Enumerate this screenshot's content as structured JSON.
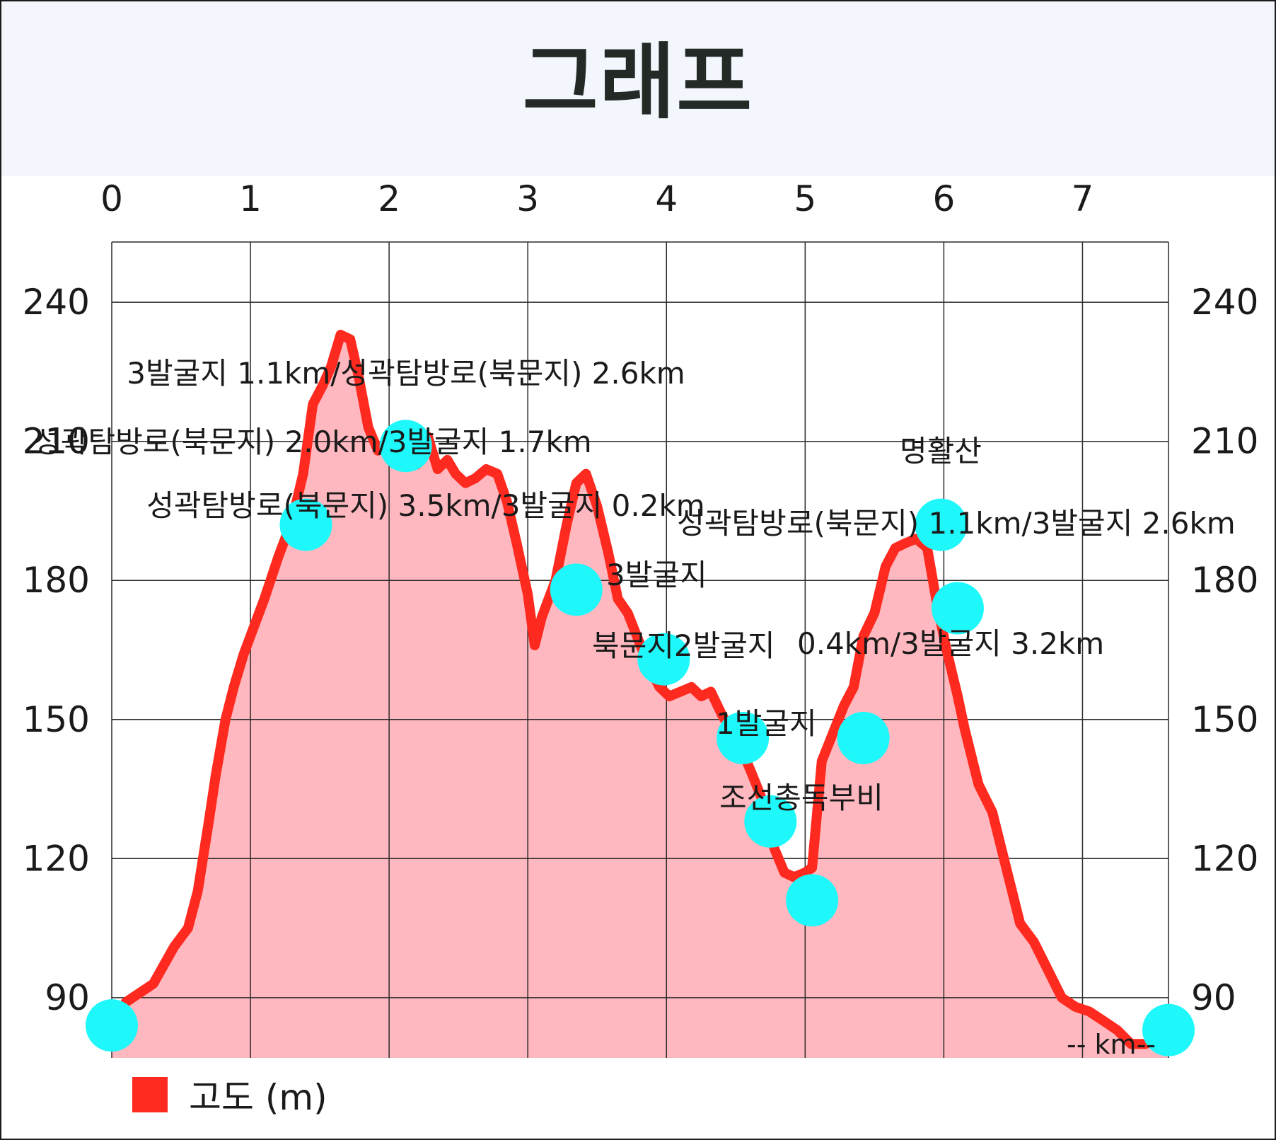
{
  "page": {
    "title": "그래프"
  },
  "colors": {
    "line": "#ff2a1f",
    "fill": "#ffb8bf",
    "marker": "#1ef8fa",
    "grid": "#2a2a2a",
    "text": "#1a1a1a"
  },
  "chart_data": {
    "type": "area",
    "title": "",
    "xlabel": "-- km--",
    "ylabel": "",
    "xlim": [
      0,
      7.62
    ],
    "ylim": [
      77,
      253
    ],
    "x_ticks": [
      0,
      1,
      2,
      3,
      4,
      5,
      6,
      7
    ],
    "y_ticks": [
      90,
      120,
      150,
      180,
      210,
      240
    ],
    "x_tick_labels": [
      "0",
      "1",
      "2",
      "3",
      "4",
      "5",
      "6",
      "7"
    ],
    "y_tick_labels": [
      "90",
      "120",
      "150",
      "180",
      "210",
      "240"
    ],
    "grid": true,
    "legend": {
      "position": "bottom-left",
      "entries": [
        "고도 (m)"
      ]
    },
    "series": [
      {
        "name": "고도 (m)",
        "x": [
          0,
          0.1,
          0.3,
          0.45,
          0.55,
          0.62,
          0.7,
          0.75,
          0.82,
          0.88,
          0.95,
          1.05,
          1.1,
          1.2,
          1.3,
          1.38,
          1.45,
          1.52,
          1.58,
          1.65,
          1.72,
          1.78,
          1.85,
          1.92,
          1.98,
          2.05,
          2.12,
          2.2,
          2.28,
          2.35,
          2.42,
          2.48,
          2.55,
          2.62,
          2.7,
          2.78,
          2.85,
          2.92,
          3.0,
          3.05,
          3.1,
          3.2,
          3.28,
          3.35,
          3.42,
          3.5,
          3.58,
          3.65,
          3.72,
          3.8,
          3.88,
          3.95,
          4.02,
          4.1,
          4.18,
          4.25,
          4.32,
          4.4,
          4.48,
          4.55,
          4.62,
          4.7,
          4.78,
          4.85,
          4.92,
          5.0,
          5.05,
          5.12,
          5.2,
          5.28,
          5.35,
          5.42,
          5.5,
          5.58,
          5.65,
          5.72,
          5.8,
          5.88,
          5.95,
          6.02,
          6.1,
          6.15,
          6.25,
          6.35,
          6.45,
          6.55,
          6.65,
          6.75,
          6.85,
          6.95,
          7.05,
          7.15,
          7.25,
          7.35,
          7.45,
          7.55,
          7.62
        ],
        "y": [
          84,
          89,
          93,
          101,
          105,
          113,
          128,
          138,
          150,
          157,
          164,
          172,
          176,
          185,
          193,
          203,
          218,
          222,
          226,
          233,
          232,
          224,
          213,
          208,
          210,
          209,
          207,
          205,
          211,
          204,
          206,
          203,
          201,
          202,
          204,
          203,
          197,
          188,
          177,
          166,
          172,
          180,
          192,
          201,
          203,
          196,
          186,
          176,
          173,
          167,
          161,
          157,
          155,
          156,
          157,
          155,
          156,
          151,
          147,
          143,
          138,
          132,
          122,
          117,
          116,
          117,
          118,
          141,
          147,
          153,
          157,
          168,
          173,
          183,
          187,
          188,
          189,
          187,
          175,
          165,
          155,
          148,
          136,
          130,
          118,
          106,
          102,
          96,
          90,
          88,
          87,
          85,
          83,
          80,
          80,
          81,
          82
        ]
      }
    ],
    "waypoints": [
      {
        "x": 0,
        "y": 84,
        "label": ""
      },
      {
        "x": 1.4,
        "y": 192,
        "label": "성곽탐방로(북문지) 3.5km/3발굴지 0.2km"
      },
      {
        "x": 2.12,
        "y": 209,
        "label": "성곽탐방로(북문지) 2.0km/3발굴지 1.7km"
      },
      {
        "x": 3.35,
        "y": 178,
        "label": "3발굴지"
      },
      {
        "x": 3.98,
        "y": 163,
        "label": "북문지2발굴지"
      },
      {
        "x": 4.55,
        "y": 146,
        "label": "1발굴지"
      },
      {
        "x": 4.75,
        "y": 128,
        "label": "조선총독부비"
      },
      {
        "x": 5.05,
        "y": 111,
        "label": ""
      },
      {
        "x": 5.42,
        "y": 146,
        "label": ""
      },
      {
        "x": 5.98,
        "y": 192,
        "label": "명활산"
      },
      {
        "x": 6.1,
        "y": 174,
        "label": ""
      },
      {
        "x": 7.62,
        "y": 83,
        "label": ""
      }
    ],
    "annotations": [
      {
        "text": "3발굴지 1.1km/성곽탐방로(북문지) 2.6km"
      },
      {
        "text": "성곽탐방로(북문지) 1.1km/3발굴지 2.6km"
      },
      {
        "text": "0.4km/3발굴지 3.2km"
      }
    ]
  }
}
